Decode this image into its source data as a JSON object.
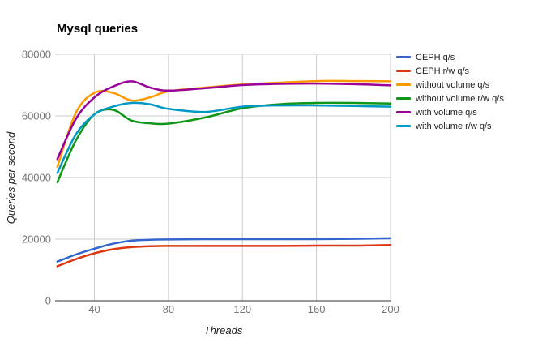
{
  "chart": {
    "title": "Mysql queries",
    "xlabel": "Threads",
    "ylabel": "Queries per second"
  },
  "style": {
    "grid_color": "#cccccc",
    "axis_color": "#333333",
    "tick_color": "#757575",
    "title_color": "#000000",
    "axis_title_color": "#222222",
    "legend_text_color": "#222222",
    "background": "#ffffff"
  },
  "chart_data": {
    "type": "line",
    "title": "Mysql queries",
    "xlabel": "Threads",
    "ylabel": "Queries per second",
    "curve": "smooth",
    "grid": true,
    "legend_position": "right",
    "xlim": [
      20,
      200
    ],
    "ylim": [
      0,
      80000
    ],
    "x_ticks": [
      40,
      80,
      120,
      160,
      200
    ],
    "y_ticks": [
      0,
      20000,
      40000,
      60000,
      80000
    ],
    "x": [
      20,
      30,
      40,
      50,
      60,
      70,
      80,
      100,
      120,
      140,
      160,
      180,
      200
    ],
    "series": [
      {
        "name": "CEPH q/s",
        "color": "#3366CC",
        "values": [
          12700,
          15000,
          16900,
          18500,
          19500,
          19800,
          19900,
          20000,
          20000,
          20000,
          20000,
          20100,
          20300
        ]
      },
      {
        "name": "CEPH r/w q/s",
        "color": "#DC3912",
        "values": [
          11200,
          13500,
          15400,
          16700,
          17400,
          17700,
          17800,
          17800,
          17800,
          17800,
          17900,
          17900,
          18100
        ]
      },
      {
        "name": "without volume q/s",
        "color": "#FF9900",
        "values": [
          43500,
          61000,
          67500,
          67500,
          65000,
          66000,
          68000,
          69200,
          70200,
          70800,
          71300,
          71300,
          71200
        ]
      },
      {
        "name": "without volume r/w q/s",
        "color": "#109618",
        "values": [
          38500,
          52000,
          60500,
          62000,
          58500,
          57600,
          57500,
          59500,
          62500,
          63800,
          64200,
          64200,
          64000
        ]
      },
      {
        "name": "with volume q/s",
        "color": "#990099",
        "values": [
          46000,
          59000,
          66000,
          69500,
          71200,
          69200,
          68200,
          69000,
          70000,
          70400,
          70500,
          70300,
          69900
        ]
      },
      {
        "name": "with volume r/w q/s",
        "color": "#0099C6",
        "values": [
          41500,
          54000,
          60500,
          63000,
          64200,
          63800,
          62300,
          61300,
          63000,
          63400,
          63400,
          63200,
          63000
        ]
      }
    ]
  }
}
